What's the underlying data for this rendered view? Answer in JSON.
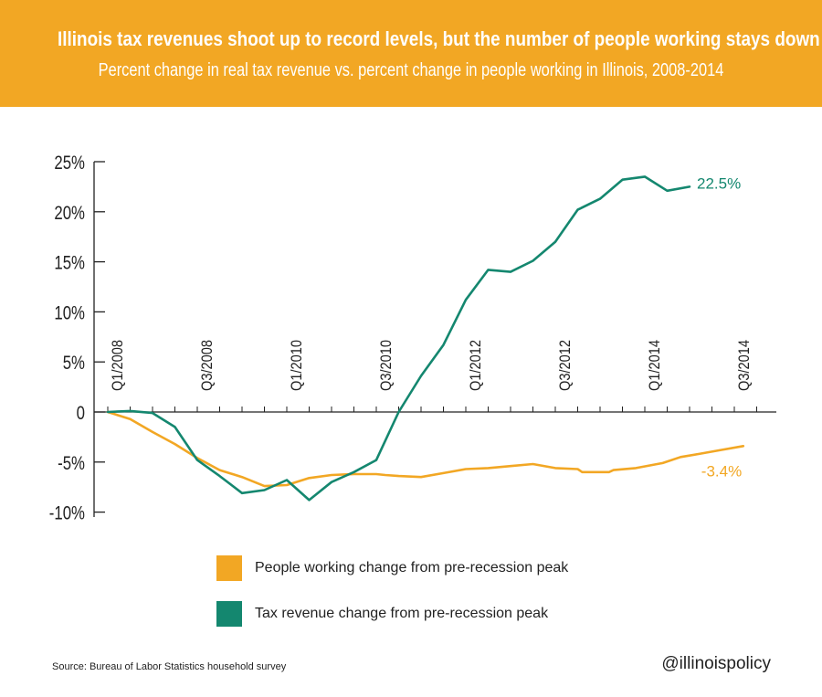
{
  "header": {
    "title": "Illinois tax revenues shoot up to record levels, but the number of people working stays down",
    "subtitle": "Percent change in real tax revenue vs. percent change in people working in Illinois, 2008-2014"
  },
  "colors": {
    "header_bg": "#f2a724",
    "people": "#f2a724",
    "tax": "#14876f"
  },
  "chart_data": {
    "type": "line",
    "title": "Illinois tax revenues shoot up to record levels, but the number of people working stays down",
    "subtitle": "Percent change in real tax revenue vs. percent change in people working in Illinois, 2008-2014",
    "xlabel": "",
    "ylabel": "",
    "ylim": [
      -10,
      25
    ],
    "y_ticks": [
      25,
      20,
      15,
      10,
      5,
      0,
      -5,
      -10
    ],
    "y_tick_labels": [
      "25%",
      "20%",
      "15%",
      "10%",
      "5%",
      "0",
      "-5%",
      "-10%"
    ],
    "x_ticks": [
      {
        "label": "Q1/2008",
        "x": 2008.0
      },
      {
        "label": "Q3/2008",
        "x": 2009.0
      },
      {
        "label": "Q1/2010",
        "x": 2010.0
      },
      {
        "label": "Q3/2010",
        "x": 2011.0
      },
      {
        "label": "Q1/2012",
        "x": 2012.0
      },
      {
        "label": "Q3/2012",
        "x": 2013.0
      },
      {
        "label": "Q1/2014",
        "x": 2014.0
      },
      {
        "label": "Q3/2014",
        "x": 2015.0
      }
    ],
    "x_range": [
      2008.0,
      2015.3
    ],
    "grid": false,
    "legend_placement": "bottom",
    "series": [
      {
        "name": "People working change from pre-recession peak",
        "end_label": "-3.4%",
        "points": [
          [
            2008.0,
            0.0
          ],
          [
            2008.25,
            -0.7
          ],
          [
            2008.5,
            -2.0
          ],
          [
            2008.75,
            -3.2
          ],
          [
            2009.0,
            -4.6
          ],
          [
            2009.25,
            -5.8
          ],
          [
            2009.5,
            -6.5
          ],
          [
            2009.75,
            -7.4
          ],
          [
            2010.0,
            -7.3
          ],
          [
            2010.25,
            -6.6
          ],
          [
            2010.5,
            -6.3
          ],
          [
            2010.75,
            -6.2
          ],
          [
            2011.0,
            -6.2
          ],
          [
            2011.1,
            -6.3
          ],
          [
            2011.25,
            -6.4
          ],
          [
            2011.5,
            -6.5
          ],
          [
            2011.75,
            -6.1
          ],
          [
            2012.0,
            -5.7
          ],
          [
            2012.25,
            -5.6
          ],
          [
            2012.5,
            -5.4
          ],
          [
            2012.75,
            -5.2
          ],
          [
            2013.0,
            -5.6
          ],
          [
            2013.25,
            -5.7
          ],
          [
            2013.3,
            -6.0
          ],
          [
            2013.6,
            -6.0
          ],
          [
            2013.65,
            -5.8
          ],
          [
            2013.9,
            -5.6
          ],
          [
            2014.2,
            -5.1
          ],
          [
            2014.4,
            -4.5
          ],
          [
            2014.6,
            -4.2
          ],
          [
            2014.85,
            -3.8
          ],
          [
            2015.1,
            -3.4
          ]
        ]
      },
      {
        "name": "Tax revenue change from pre-recession peak",
        "end_label": "22.5%",
        "points": [
          [
            2008.0,
            0.0
          ],
          [
            2008.25,
            0.1
          ],
          [
            2008.5,
            -0.1
          ],
          [
            2008.75,
            -1.5
          ],
          [
            2009.0,
            -4.8
          ],
          [
            2009.25,
            -6.4
          ],
          [
            2009.5,
            -8.1
          ],
          [
            2009.75,
            -7.8
          ],
          [
            2010.0,
            -6.8
          ],
          [
            2010.25,
            -8.8
          ],
          [
            2010.5,
            -7.0
          ],
          [
            2010.75,
            -6.0
          ],
          [
            2011.0,
            -4.8
          ],
          [
            2011.25,
            0.0
          ],
          [
            2011.5,
            3.6
          ],
          [
            2011.75,
            6.7
          ],
          [
            2012.0,
            11.2
          ],
          [
            2012.25,
            14.2
          ],
          [
            2012.5,
            14.0
          ],
          [
            2012.75,
            15.1
          ],
          [
            2013.0,
            17.0
          ],
          [
            2013.25,
            20.2
          ],
          [
            2013.5,
            21.3
          ],
          [
            2013.75,
            23.2
          ],
          [
            2014.0,
            23.5
          ],
          [
            2014.25,
            22.1
          ],
          [
            2014.5,
            22.5
          ]
        ]
      }
    ]
  },
  "legend": [
    {
      "label": "People working change from pre-recession peak"
    },
    {
      "label": "Tax revenue change from pre-recession peak"
    }
  ],
  "footer": {
    "source": "Source: Bureau of Labor Statistics household survey",
    "handle": "@illinoispolicy"
  }
}
